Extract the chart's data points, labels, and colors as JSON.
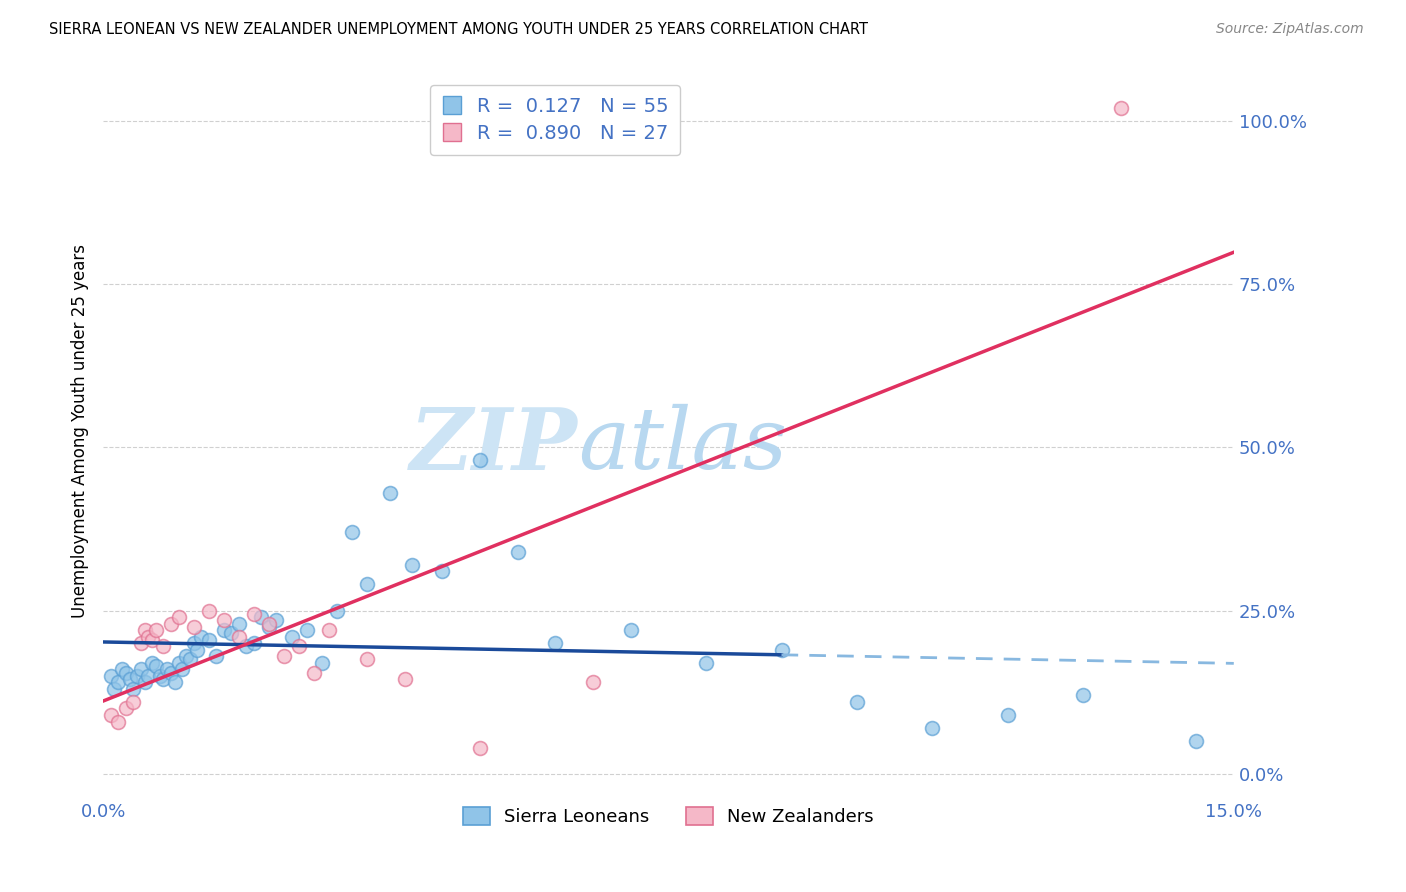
{
  "title": "SIERRA LEONEAN VS NEW ZEALANDER UNEMPLOYMENT AMONG YOUTH UNDER 25 YEARS CORRELATION CHART",
  "source": "Source: ZipAtlas.com",
  "ylabel": "Unemployment Among Youth under 25 years",
  "xlim": [
    0.0,
    15.0
  ],
  "ylim": [
    -3.0,
    108.0
  ],
  "yticks_right": [
    0,
    25,
    50,
    75,
    100
  ],
  "ytick_labels_right": [
    "0.0%",
    "25.0%",
    "50.0%",
    "75.0%",
    "100.0%"
  ],
  "xticks": [
    0.0,
    3.0,
    6.0,
    9.0,
    12.0,
    15.0
  ],
  "xtick_labels": [
    "0.0%",
    "",
    "",
    "",
    "",
    "15.0%"
  ],
  "grid_color": "#d0d0d0",
  "background_color": "#ffffff",
  "watermark_zip": "ZIP",
  "watermark_atlas": "atlas",
  "watermark_color_zip": "#cde4f5",
  "watermark_color_atlas": "#b8d8f0",
  "sierra_color": "#90c4e8",
  "sierra_color_edge": "#5a9fd4",
  "nz_color": "#f5b8c8",
  "nz_color_edge": "#e07090",
  "sierra_R": 0.127,
  "sierra_N": 55,
  "nz_R": 0.89,
  "nz_N": 27,
  "legend_color": "#4472c4",
  "sierra_trend_color": "#1a4a9a",
  "nz_trend_color": "#e03060",
  "sierra_dashed_color": "#88b8e0",
  "sierra_x": [
    0.1,
    0.15,
    0.2,
    0.25,
    0.3,
    0.35,
    0.4,
    0.45,
    0.5,
    0.55,
    0.6,
    0.65,
    0.7,
    0.75,
    0.8,
    0.85,
    0.9,
    0.95,
    1.0,
    1.05,
    1.1,
    1.15,
    1.2,
    1.25,
    1.3,
    1.4,
    1.5,
    1.6,
    1.7,
    1.8,
    1.9,
    2.0,
    2.1,
    2.2,
    2.3,
    2.5,
    2.7,
    2.9,
    3.1,
    3.3,
    3.5,
    3.8,
    4.1,
    4.5,
    5.0,
    5.5,
    6.0,
    7.0,
    8.0,
    9.0,
    10.0,
    11.0,
    12.0,
    13.0,
    14.5
  ],
  "sierra_y": [
    15.0,
    13.0,
    14.0,
    16.0,
    15.5,
    14.5,
    13.0,
    15.0,
    16.0,
    14.0,
    15.0,
    17.0,
    16.5,
    15.0,
    14.5,
    16.0,
    15.5,
    14.0,
    17.0,
    16.0,
    18.0,
    17.5,
    20.0,
    19.0,
    21.0,
    20.5,
    18.0,
    22.0,
    21.5,
    23.0,
    19.5,
    20.0,
    24.0,
    22.5,
    23.5,
    21.0,
    22.0,
    17.0,
    25.0,
    37.0,
    29.0,
    43.0,
    32.0,
    31.0,
    48.0,
    34.0,
    20.0,
    22.0,
    17.0,
    19.0,
    11.0,
    7.0,
    9.0,
    12.0,
    5.0
  ],
  "nz_x": [
    0.1,
    0.2,
    0.3,
    0.4,
    0.5,
    0.55,
    0.6,
    0.65,
    0.7,
    0.8,
    0.9,
    1.0,
    1.2,
    1.4,
    1.6,
    1.8,
    2.0,
    2.2,
    2.4,
    2.6,
    2.8,
    3.0,
    3.5,
    4.0,
    5.0,
    6.5,
    13.5
  ],
  "nz_y": [
    9.0,
    8.0,
    10.0,
    11.0,
    20.0,
    22.0,
    21.0,
    20.5,
    22.0,
    19.5,
    23.0,
    24.0,
    22.5,
    25.0,
    23.5,
    21.0,
    24.5,
    23.0,
    18.0,
    19.5,
    15.5,
    22.0,
    17.5,
    14.5,
    4.0,
    14.0,
    102.0
  ]
}
